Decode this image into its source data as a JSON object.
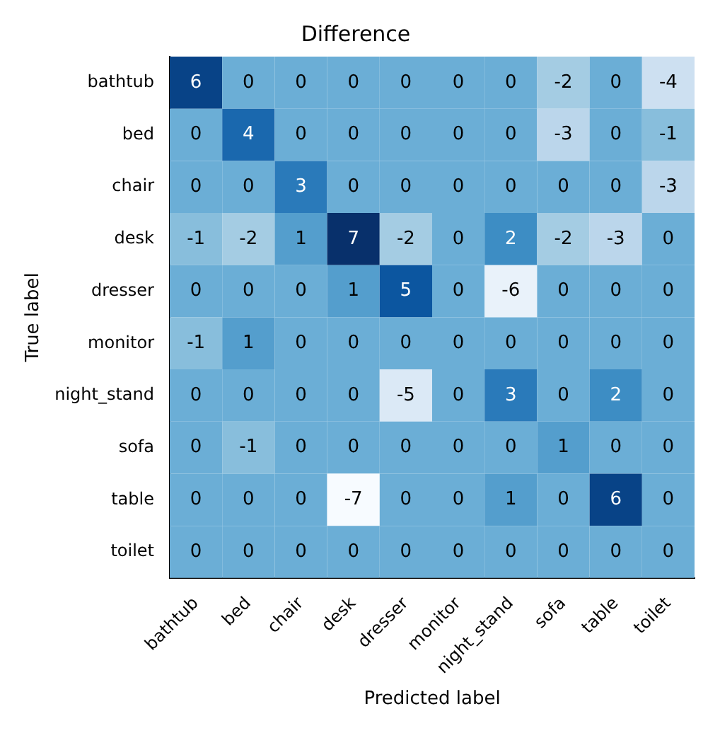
{
  "chart_data": {
    "type": "heatmap",
    "title": "Difference",
    "xlabel": "Predicted label",
    "ylabel": "True label",
    "categories": [
      "bathtub",
      "bed",
      "chair",
      "desk",
      "dresser",
      "monitor",
      "night_stand",
      "sofa",
      "table",
      "toilet"
    ],
    "y_categories": [
      "bathtub",
      "bed",
      "chair",
      "desk",
      "dresser",
      "monitor",
      "night_stand",
      "sofa",
      "table",
      "toilet"
    ],
    "cells": [
      [
        6,
        0,
        0,
        0,
        0,
        0,
        0,
        -2,
        0,
        -4
      ],
      [
        0,
        4,
        0,
        0,
        0,
        0,
        0,
        -3,
        0,
        -1
      ],
      [
        0,
        0,
        3,
        0,
        0,
        0,
        0,
        0,
        0,
        -3
      ],
      [
        -1,
        -2,
        1,
        7,
        -2,
        0,
        2,
        -2,
        -3,
        0
      ],
      [
        0,
        0,
        0,
        1,
        5,
        0,
        -6,
        0,
        0,
        0
      ],
      [
        -1,
        1,
        0,
        0,
        0,
        0,
        0,
        0,
        0,
        0
      ],
      [
        0,
        0,
        0,
        0,
        -5,
        0,
        3,
        0,
        2,
        0
      ],
      [
        0,
        -1,
        0,
        0,
        0,
        0,
        0,
        1,
        0,
        0
      ],
      [
        0,
        0,
        0,
        -7,
        0,
        0,
        1,
        0,
        6,
        0
      ],
      [
        0,
        0,
        0,
        0,
        0,
        0,
        0,
        0,
        0,
        0
      ]
    ],
    "data_labels": true
  }
}
